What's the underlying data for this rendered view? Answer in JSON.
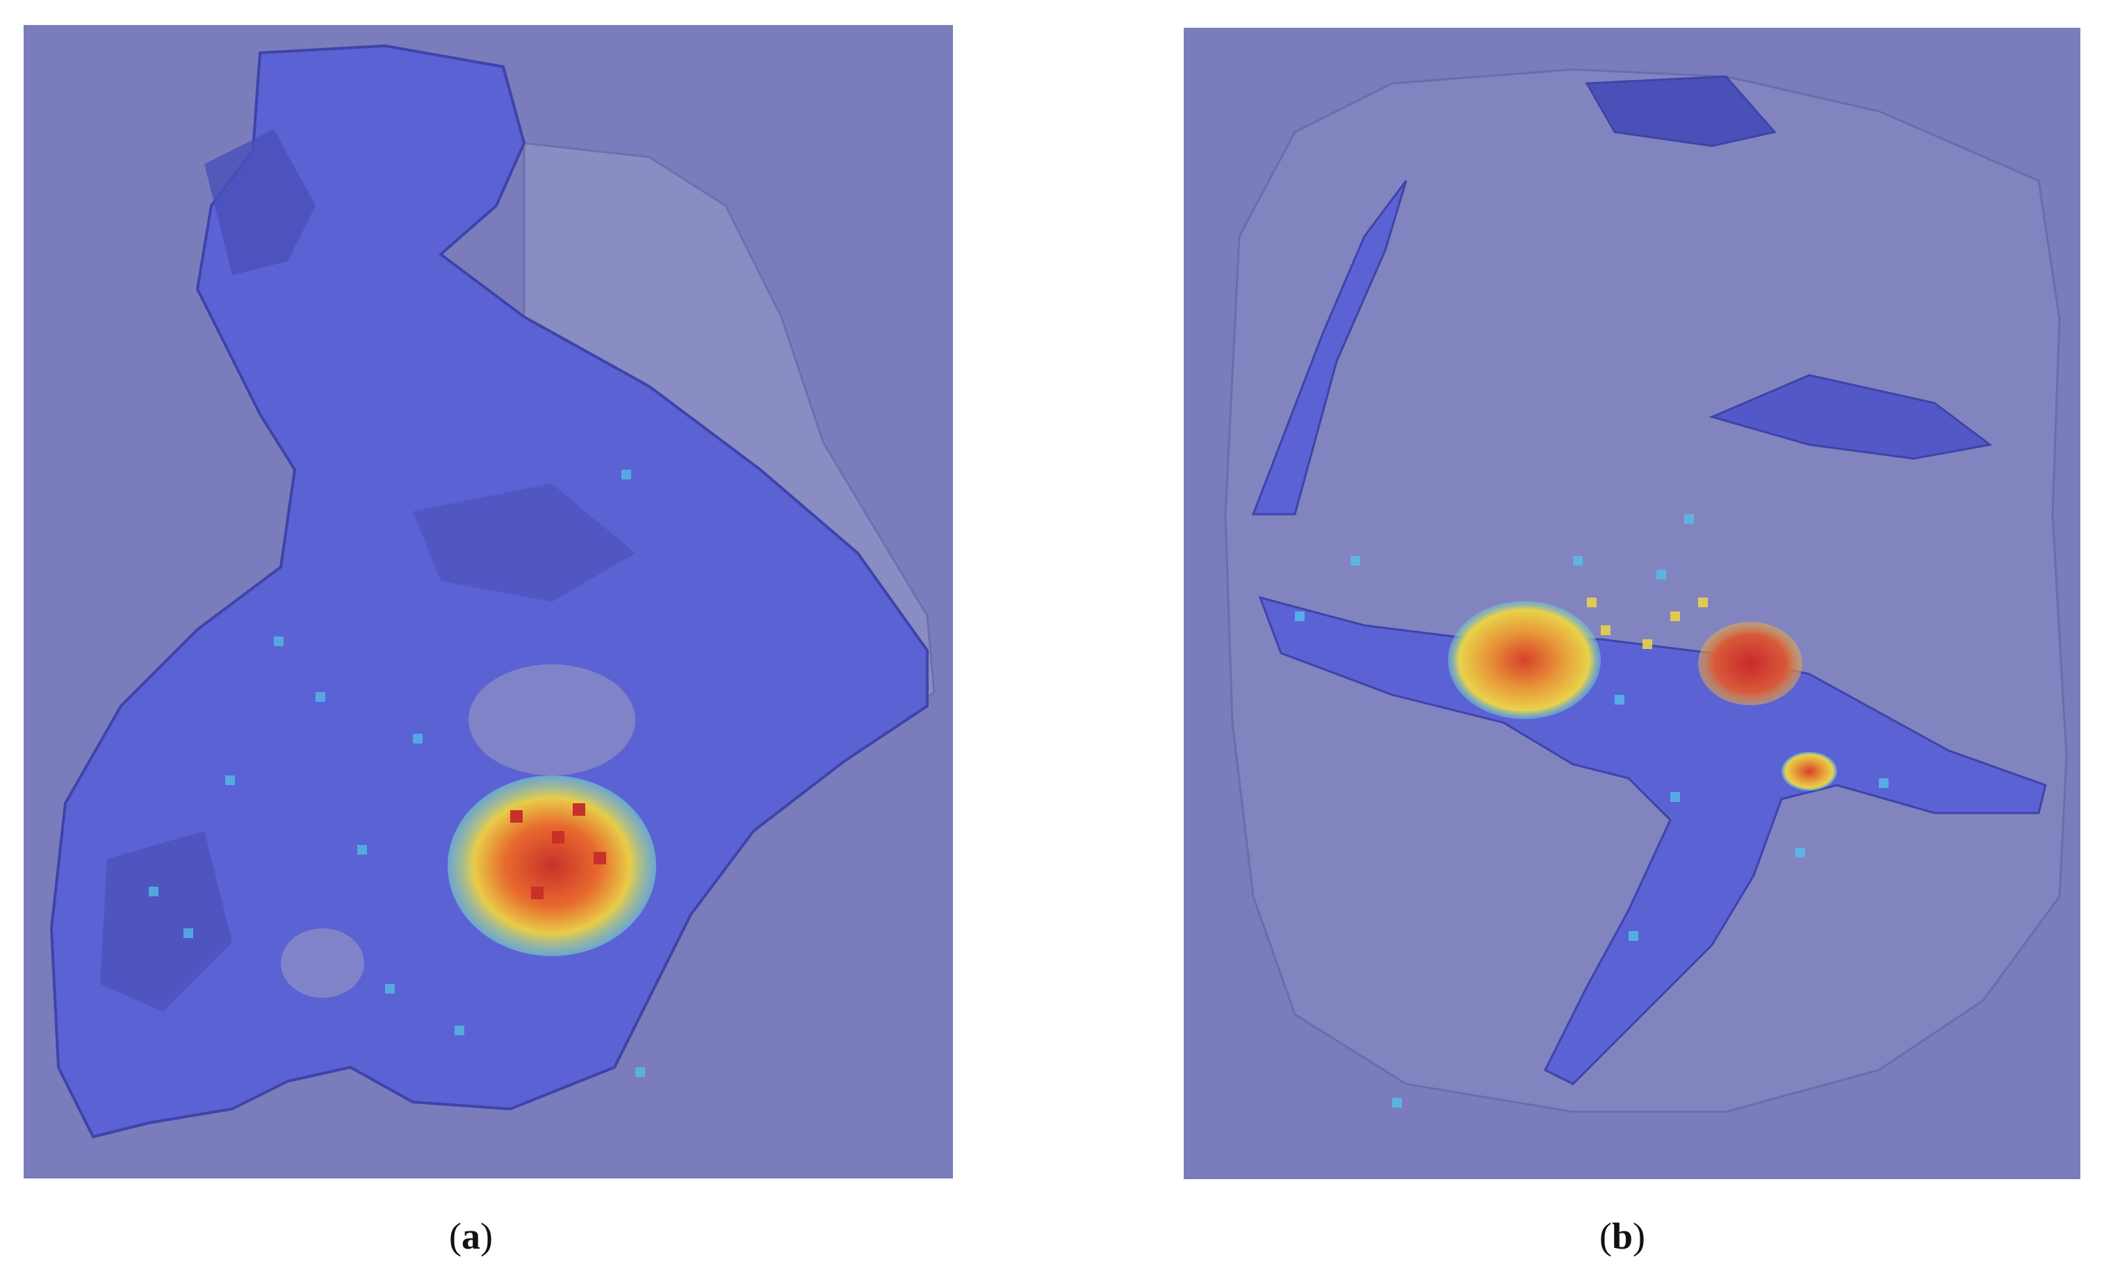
{
  "panels": [
    {
      "id": "a",
      "caption": {
        "open": "(",
        "letter": "a",
        "close": ")"
      }
    },
    {
      "id": "b",
      "caption": {
        "open": "(",
        "letter": "b",
        "close": ")"
      }
    }
  ],
  "colors": {
    "background": "#7a7cbc",
    "tissue": "#5a64d8",
    "tissue_dark": "#4a4fb8",
    "heat_low": "#4fa8e8",
    "heat_mid": "#e8d84a",
    "heat_high": "#d83a2a"
  }
}
